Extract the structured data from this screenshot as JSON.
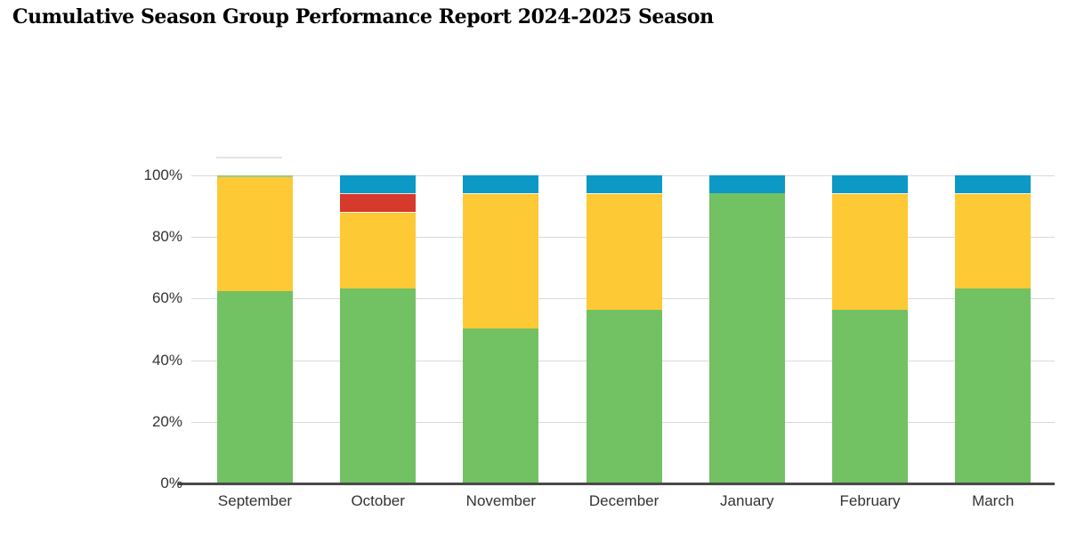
{
  "page": {
    "background": "#ffffff"
  },
  "chart_data": {
    "type": "bar",
    "stacked": true,
    "title": "Cumulative Season Group Performance Report 2024-2025 Season",
    "categories": [
      "September",
      "October",
      "November",
      "December",
      "January",
      "February",
      "March"
    ],
    "series": [
      {
        "name": "green-segment",
        "color": "#72c162",
        "values": [
          62,
          63,
          50,
          56,
          94,
          56,
          63
        ]
      },
      {
        "name": "yellow-segment",
        "color": "#fdc934",
        "values": [
          38,
          25,
          44,
          38,
          0,
          38,
          31
        ]
      },
      {
        "name": "red-segment",
        "color": "#d53a2c",
        "values": [
          0,
          6,
          0,
          0,
          0,
          0,
          0
        ]
      },
      {
        "name": "blue-segment",
        "color": "#0c99c6",
        "values": [
          0,
          6,
          6,
          6,
          6,
          6,
          6
        ]
      }
    ],
    "y_axis": {
      "tick_labels": [
        "0%",
        "20%",
        "40%",
        "60%",
        "80%",
        "100%"
      ],
      "min": 0,
      "max": 100
    },
    "x_axis": {
      "tick_labels": [
        "September",
        "October",
        "November",
        "December",
        "January",
        "February",
        "March"
      ]
    },
    "legend": "none",
    "grid": true,
    "colors": {
      "gridline": "#d9d9d9",
      "axis_line": "#4a4a4a",
      "tick_label": "#333333",
      "title": "#000000",
      "background": "#ffffff"
    }
  },
  "artifacts": {
    "ghost_line_above_september": {
      "color": "#e1e5df"
    },
    "september_top_sliver": {
      "color": "#9dc795"
    }
  }
}
